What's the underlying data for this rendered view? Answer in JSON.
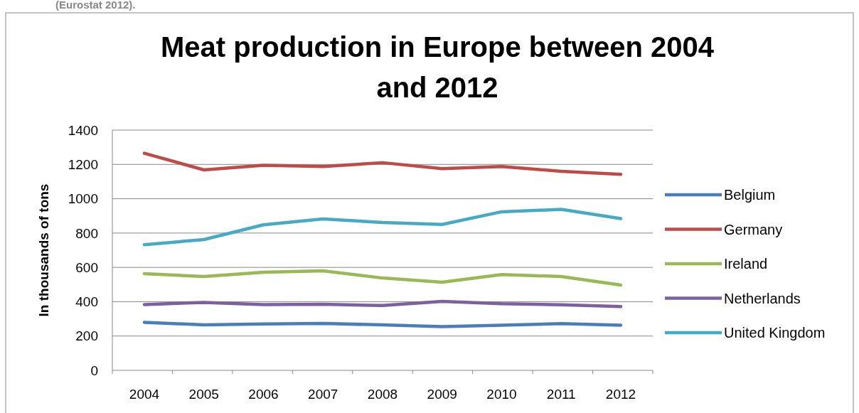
{
  "chart_data": {
    "type": "line",
    "title": "Meat production in Europe between 2004 and 2012",
    "ylabel": "In thousands of tons",
    "annotations": [
      "(Eurostat 2012)."
    ],
    "categories": [
      "2004",
      "2005",
      "2006",
      "2007",
      "2008",
      "2009",
      "2010",
      "2011",
      "2012"
    ],
    "series": [
      {
        "name": "Belgium",
        "color": "#4a7ebb",
        "values": [
          280,
          265,
          270,
          273,
          265,
          255,
          263,
          272,
          263
        ]
      },
      {
        "name": "Germany",
        "color": "#be4b48",
        "values": [
          1265,
          1168,
          1195,
          1188,
          1210,
          1175,
          1188,
          1160,
          1142
        ]
      },
      {
        "name": "Ireland",
        "color": "#98b954",
        "values": [
          563,
          547,
          572,
          580,
          538,
          514,
          558,
          547,
          497
        ]
      },
      {
        "name": "Netherlands",
        "color": "#7d60a0",
        "values": [
          383,
          396,
          383,
          385,
          378,
          402,
          388,
          382,
          372
        ]
      },
      {
        "name": "United Kingdom",
        "color": "#46aac5",
        "values": [
          732,
          762,
          848,
          882,
          862,
          850,
          924,
          938,
          884
        ]
      }
    ],
    "ylim": [
      0,
      1400
    ],
    "yticks": [
      0,
      200,
      400,
      600,
      800,
      1000,
      1200,
      1400
    ],
    "grid": "y",
    "legend": "right",
    "marker": "none",
    "line_style": "solid"
  }
}
